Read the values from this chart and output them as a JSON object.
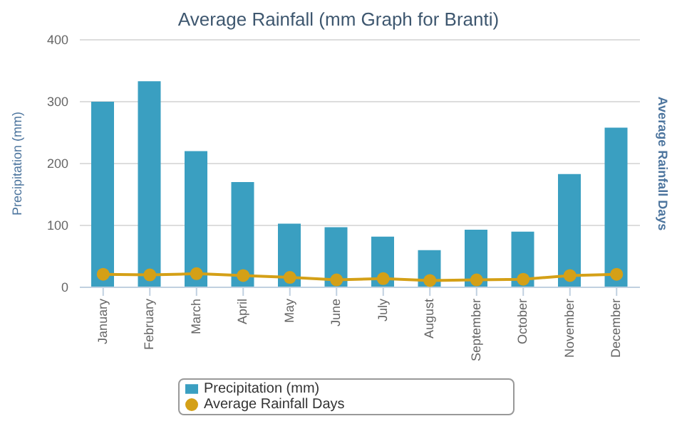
{
  "chart_data": {
    "type": "bar",
    "title": "Average Rainfall (mm Graph for Branti)",
    "ylabel": "Precipitation (mm)",
    "y2label": "Average Rainfall Days",
    "categories": [
      "January",
      "February",
      "March",
      "April",
      "May",
      "June",
      "July",
      "August",
      "September",
      "October",
      "November",
      "December"
    ],
    "series": [
      {
        "name": "Precipitation (mm)",
        "color": "#3a9fc1",
        "values": [
          300,
          333,
          220,
          170,
          103,
          97,
          82,
          60,
          93,
          90,
          183,
          258
        ]
      },
      {
        "name": "Average Rainfall Days",
        "type": "line",
        "color": "#d4a017",
        "marker": "circle",
        "values": [
          21,
          20,
          22,
          19,
          16,
          12,
          14,
          11,
          12,
          13,
          19,
          21
        ]
      }
    ],
    "ylim": [
      0,
      400
    ],
    "yticks": [
      0,
      100,
      200,
      300,
      400
    ],
    "grid": "y",
    "legend": "bottom"
  }
}
